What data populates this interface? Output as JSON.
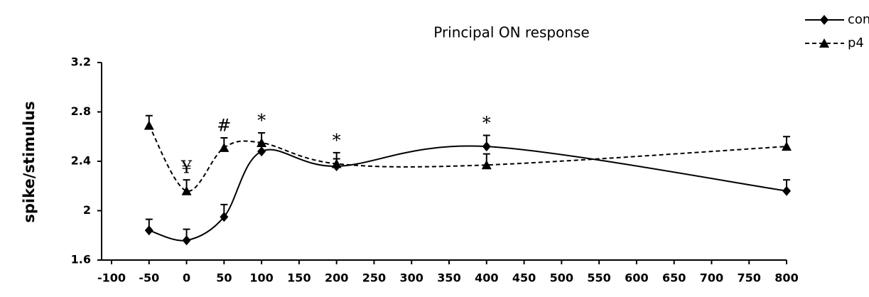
{
  "chart_data": {
    "type": "line",
    "title": "Principal ON response",
    "ylabel": "spike/stimulus",
    "x": [
      -50,
      0,
      50,
      100,
      200,
      400,
      800
    ],
    "series": [
      {
        "name": "con",
        "color": "#000000",
        "dash": false,
        "marker": "diamond",
        "values": [
          1.84,
          1.76,
          1.95,
          2.48,
          2.36,
          2.52,
          2.16
        ],
        "errors": [
          0.09,
          0.09,
          0.1,
          0.06,
          0.06,
          0.09,
          0.09
        ]
      },
      {
        "name": "p4",
        "color": "#000000",
        "dash": true,
        "marker": "triangle",
        "values": [
          2.69,
          2.16,
          2.51,
          2.55,
          2.38,
          2.37,
          2.52
        ],
        "errors": [
          0.08,
          0.09,
          0.08,
          0.08,
          0.09,
          0.09,
          0.08
        ]
      }
    ],
    "annotations": [
      {
        "text": "¥",
        "x": 0
      },
      {
        "text": "#",
        "x": 50
      },
      {
        "text": "*",
        "x": 100
      },
      {
        "text": "*",
        "x": 200
      },
      {
        "text": "*",
        "x": 400
      }
    ],
    "xlim": [
      -100,
      800
    ],
    "xticks": [
      -100,
      -50,
      0,
      50,
      100,
      150,
      200,
      250,
      300,
      350,
      400,
      450,
      500,
      550,
      600,
      650,
      700,
      750,
      800
    ],
    "ylim": [
      1.6,
      3.2
    ],
    "yticks": [
      1.6,
      2,
      2.4,
      2.8,
      3.2
    ],
    "legend": "top-right"
  }
}
